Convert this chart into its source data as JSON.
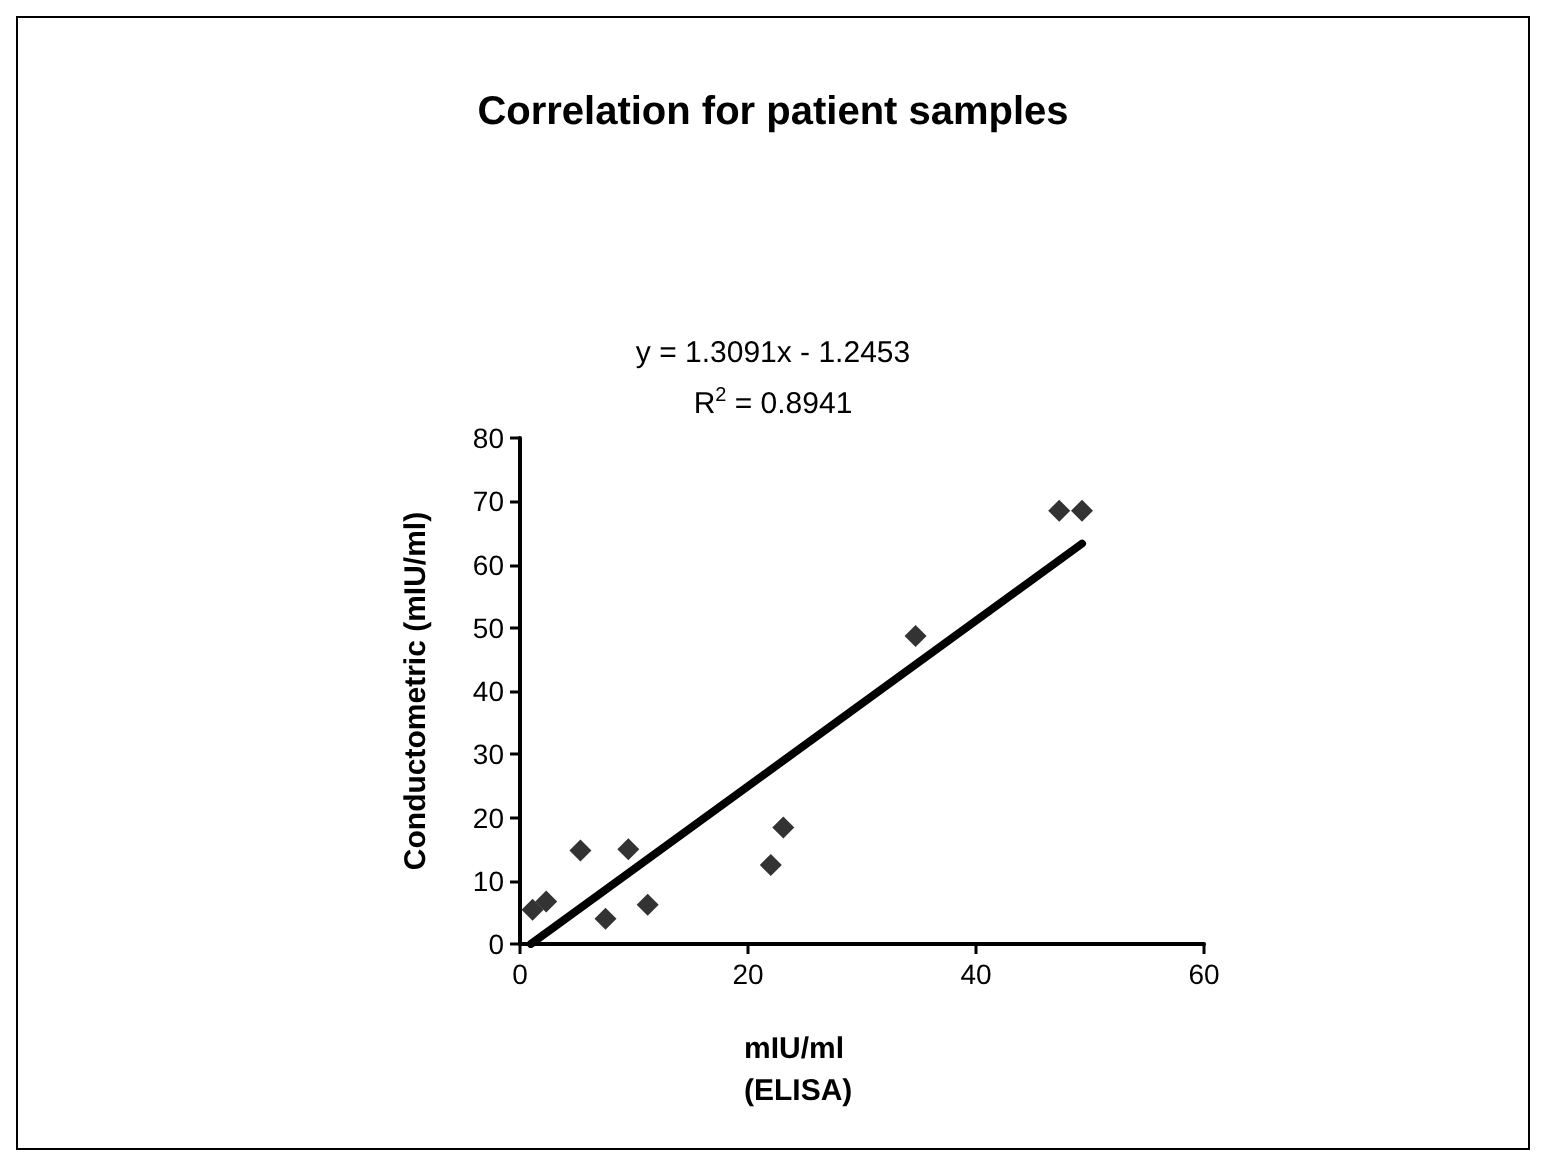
{
  "chart_data": {
    "type": "scatter",
    "title": "Correlation for patient samples",
    "xlabel": "mIU/ml\n(ELISA)",
    "ylabel": "Conductometric (mIU/ml)",
    "annotations": [
      "y = 1.3091x - 1.2453",
      "R$^{2}$ = 0.8941"
    ],
    "grid": false,
    "xlim": [
      0,
      60
    ],
    "xticks": [
      0,
      20,
      40,
      60
    ],
    "ylim": [
      0,
      80
    ],
    "yticks": [
      0,
      10,
      20,
      30,
      40,
      50,
      60,
      70,
      80
    ],
    "series": [
      {
        "marker": "diamond",
        "color": "#000000",
        "x": [
          1.1,
          2.3,
          5.3,
          7.5,
          9.5,
          11.2,
          22.0,
          23.1,
          34.7,
          47.3,
          49.3
        ],
        "values": [
          5.4,
          6.7,
          14.8,
          4.0,
          15.0,
          6.2,
          12.5,
          18.4,
          48.7,
          68.5,
          68.5
        ]
      },
      {
        "type": "line",
        "marker": "none",
        "color": "#000000",
        "x": [
          0.95,
          49.3
        ],
        "values": [
          0,
          63.3
        ]
      }
    ]
  }
}
